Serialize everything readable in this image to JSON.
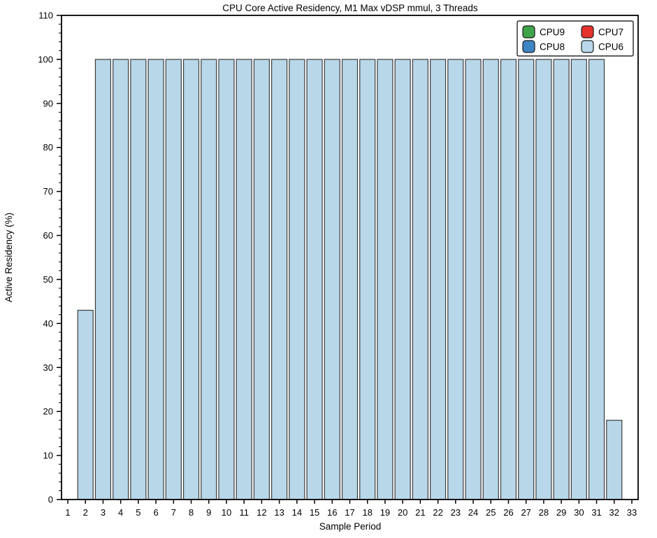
{
  "chart_data": {
    "type": "bar",
    "title": "CPU Core Active Residency, M1 Max vDSP mmul, 3 Threads",
    "xlabel": "Sample Period",
    "ylabel": "Active Residency (%)",
    "ylim": [
      0,
      110
    ],
    "ytick_interval": 10,
    "yminor_interval": 2,
    "grid": false,
    "background": "#ffffff",
    "bar_edge_color": "#3c3c3c",
    "axis_color": "#000000",
    "categories": [
      1,
      2,
      3,
      4,
      5,
      6,
      7,
      8,
      9,
      10,
      11,
      12,
      13,
      14,
      15,
      16,
      17,
      18,
      19,
      20,
      21,
      22,
      23,
      24,
      25,
      26,
      27,
      28,
      29,
      30,
      31,
      32,
      33
    ],
    "series": [
      {
        "name": "CPU9",
        "color": "#3fa349",
        "values": [
          0,
          0,
          0,
          0,
          0,
          0,
          0,
          0,
          0,
          0,
          0,
          0,
          0,
          0,
          0,
          0,
          0,
          0,
          0,
          0,
          0,
          0,
          0,
          0,
          0,
          0,
          0,
          0,
          0,
          0,
          0,
          0,
          0
        ]
      },
      {
        "name": "CPU7",
        "color": "#e5332b",
        "values": [
          0,
          0,
          0,
          0,
          0,
          0,
          0,
          0,
          0,
          0,
          0,
          0,
          0,
          0,
          0,
          0,
          0,
          0,
          0,
          0,
          0,
          0,
          0,
          0,
          0,
          0,
          0,
          0,
          0,
          0,
          0,
          0,
          0
        ]
      },
      {
        "name": "CPU8",
        "color": "#3d84c4",
        "values": [
          0,
          0,
          0,
          0,
          0,
          0,
          0,
          0,
          0,
          0,
          0,
          0,
          0,
          0,
          0,
          0,
          0,
          0,
          0,
          0,
          0,
          0,
          0,
          0,
          0,
          0,
          0,
          0,
          0,
          0,
          0,
          0,
          0
        ]
      },
      {
        "name": "CPU6",
        "color": "#b8d8ea",
        "values": [
          0,
          43,
          100,
          100,
          100,
          100,
          100,
          100,
          100,
          100,
          100,
          100,
          100,
          100,
          100,
          100,
          100,
          100,
          100,
          100,
          100,
          100,
          100,
          100,
          100,
          100,
          100,
          100,
          100,
          100,
          100,
          18,
          0
        ]
      }
    ],
    "legend": {
      "position": "upper-right",
      "columns": 2,
      "entries": [
        {
          "label": "CPU9",
          "color": "#3fa349"
        },
        {
          "label": "CPU7",
          "color": "#e5332b"
        },
        {
          "label": "CPU8",
          "color": "#3d84c4"
        },
        {
          "label": "CPU6",
          "color": "#b8d8ea"
        }
      ]
    }
  }
}
